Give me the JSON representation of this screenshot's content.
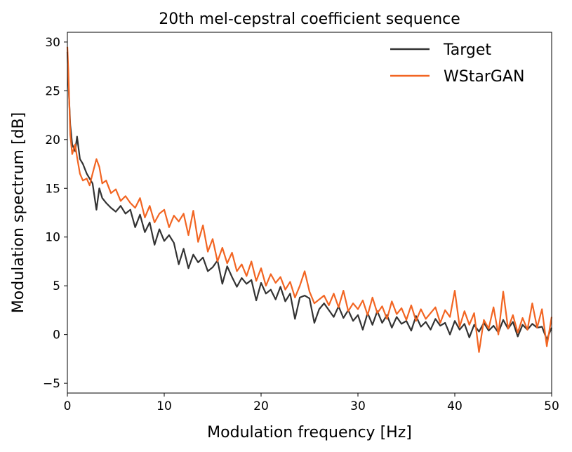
{
  "chart_data": {
    "type": "line",
    "title": "20th mel-cepstral coefficient sequence",
    "xlabel": "Modulation frequency [Hz]",
    "ylabel": "Modulation spectrum [dB]",
    "xlim": [
      0,
      50
    ],
    "ylim": [
      -6,
      31
    ],
    "xticks": [
      0,
      10,
      20,
      30,
      40,
      50
    ],
    "xtick_labels": [
      "0",
      "10",
      "20",
      "30",
      "40",
      "50"
    ],
    "yticks": [
      -5,
      0,
      5,
      10,
      15,
      20,
      25,
      30
    ],
    "ytick_labels": [
      "−5",
      "0",
      "5",
      "10",
      "15",
      "20",
      "25",
      "30"
    ],
    "grid": false,
    "legend_position": "top-right",
    "series": [
      {
        "name": "Target",
        "color": "#333333",
        "x": [
          0,
          0.1,
          0.3,
          0.5,
          0.8,
          1.0,
          1.3,
          1.6,
          2.0,
          2.3,
          2.6,
          3.0,
          3.3,
          3.6,
          4.0,
          4.5,
          5.0,
          5.5,
          6.0,
          6.5,
          7.0,
          7.5,
          8.0,
          8.5,
          9.0,
          9.5,
          10.0,
          10.5,
          11.0,
          11.5,
          12.0,
          12.5,
          13.0,
          13.5,
          14.0,
          14.5,
          15.0,
          15.5,
          16.0,
          16.5,
          17.0,
          17.5,
          18.0,
          18.5,
          19.0,
          19.5,
          20.0,
          20.5,
          21.0,
          21.5,
          22.0,
          22.5,
          23.0,
          23.5,
          24.0,
          24.5,
          25.0,
          25.5,
          26.0,
          26.5,
          27.0,
          27.5,
          28.0,
          28.5,
          29.0,
          29.5,
          30.0,
          30.5,
          31.0,
          31.5,
          32.0,
          32.5,
          33.0,
          33.5,
          34.0,
          34.5,
          35.0,
          35.5,
          36.0,
          36.5,
          37.0,
          37.5,
          38.0,
          38.5,
          39.0,
          39.5,
          40.0,
          40.5,
          41.0,
          41.5,
          42.0,
          42.5,
          43.0,
          43.5,
          44.0,
          44.5,
          45.0,
          45.5,
          46.0,
          46.5,
          47.0,
          47.5,
          48.0,
          48.5,
          49.0,
          49.5,
          50.0
        ],
        "y": [
          29.0,
          26.0,
          21.5,
          19.5,
          18.8,
          20.3,
          18.0,
          17.5,
          16.5,
          16.0,
          15.5,
          12.8,
          15.0,
          14.0,
          13.5,
          13.0,
          12.6,
          13.2,
          12.4,
          12.8,
          11.0,
          12.3,
          10.5,
          11.5,
          9.2,
          10.8,
          9.6,
          10.2,
          9.4,
          7.2,
          8.8,
          6.8,
          8.2,
          7.4,
          7.9,
          6.5,
          6.9,
          7.6,
          5.2,
          7.0,
          5.9,
          4.9,
          5.8,
          5.2,
          5.6,
          3.5,
          5.3,
          4.2,
          4.6,
          3.6,
          4.9,
          3.4,
          4.2,
          1.6,
          3.8,
          4.0,
          3.7,
          1.2,
          2.6,
          3.2,
          2.5,
          1.8,
          2.9,
          1.7,
          2.5,
          1.4,
          2.0,
          0.5,
          2.2,
          1.0,
          2.4,
          1.2,
          2.0,
          0.7,
          1.8,
          1.1,
          1.4,
          0.4,
          1.9,
          0.8,
          1.3,
          0.5,
          1.6,
          0.9,
          1.2,
          0.0,
          1.4,
          0.5,
          1.1,
          -0.3,
          1.0,
          0.3,
          1.2,
          0.4,
          0.9,
          0.2,
          1.5,
          0.6,
          1.3,
          -0.2,
          1.0,
          0.5,
          1.1,
          0.7,
          0.8,
          -0.5,
          0.7
        ]
      },
      {
        "name": "WStarGAN",
        "color": "#f26522",
        "x": [
          0,
          0.1,
          0.3,
          0.5,
          0.8,
          1.0,
          1.3,
          1.6,
          2.0,
          2.3,
          2.6,
          3.0,
          3.3,
          3.6,
          4.0,
          4.5,
          5.0,
          5.5,
          6.0,
          6.5,
          7.0,
          7.5,
          8.0,
          8.5,
          9.0,
          9.5,
          10.0,
          10.5,
          11.0,
          11.5,
          12.0,
          12.5,
          13.0,
          13.5,
          14.0,
          14.5,
          15.0,
          15.5,
          16.0,
          16.5,
          17.0,
          17.5,
          18.0,
          18.5,
          19.0,
          19.5,
          20.0,
          20.5,
          21.0,
          21.5,
          22.0,
          22.5,
          23.0,
          23.5,
          24.0,
          24.5,
          25.0,
          25.5,
          26.0,
          26.5,
          27.0,
          27.5,
          28.0,
          28.5,
          29.0,
          29.5,
          30.0,
          30.5,
          31.0,
          31.5,
          32.0,
          32.5,
          33.0,
          33.5,
          34.0,
          34.5,
          35.0,
          35.5,
          36.0,
          36.5,
          37.0,
          37.5,
          38.0,
          38.5,
          39.0,
          39.5,
          40.0,
          40.5,
          41.0,
          41.5,
          42.0,
          42.5,
          43.0,
          43.5,
          44.0,
          44.5,
          45.0,
          45.5,
          46.0,
          46.5,
          47.0,
          47.5,
          48.0,
          48.5,
          49.0,
          49.5,
          50.0
        ],
        "y": [
          29.5,
          27.0,
          20.5,
          18.5,
          19.5,
          18.2,
          16.5,
          15.8,
          16.0,
          15.3,
          16.5,
          18.0,
          17.2,
          15.5,
          15.8,
          14.5,
          14.9,
          13.7,
          14.2,
          13.5,
          13.0,
          14.0,
          12.0,
          13.2,
          11.5,
          12.4,
          12.8,
          11.0,
          12.2,
          11.6,
          12.4,
          10.2,
          12.7,
          9.5,
          11.2,
          8.5,
          9.8,
          7.5,
          8.9,
          7.3,
          8.4,
          6.5,
          7.2,
          6.0,
          7.5,
          5.5,
          6.8,
          5.0,
          6.2,
          5.3,
          5.9,
          4.6,
          5.4,
          3.8,
          5.0,
          6.5,
          4.4,
          3.2,
          3.6,
          4.0,
          3.0,
          4.2,
          2.8,
          4.5,
          2.4,
          3.2,
          2.6,
          3.5,
          2.0,
          3.8,
          2.2,
          2.9,
          1.6,
          3.4,
          2.1,
          2.7,
          1.5,
          3.0,
          1.4,
          2.6,
          1.6,
          2.2,
          2.8,
          1.2,
          2.5,
          1.8,
          4.5,
          0.8,
          2.4,
          1.0,
          2.2,
          -1.8,
          1.5,
          0.6,
          2.8,
          0.0,
          4.4,
          0.6,
          2.0,
          0.2,
          1.7,
          0.5,
          3.2,
          0.7,
          2.6,
          -1.2,
          1.8
        ]
      }
    ]
  }
}
